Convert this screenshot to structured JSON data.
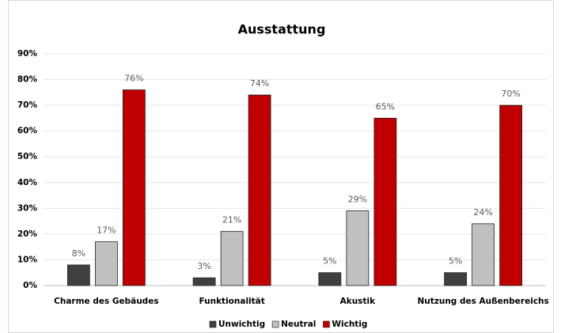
{
  "chart_data": {
    "type": "bar",
    "title": "Ausstattung",
    "categories": [
      "Charme des Gebäudes",
      "Funktionalität",
      "Akustik",
      "Nutzung des Außenbereichs"
    ],
    "series": [
      {
        "name": "Unwichtig",
        "color": "#404040",
        "values": [
          8,
          3,
          5,
          5
        ],
        "value_labels": [
          "8%",
          "3%",
          "5%",
          "5%"
        ]
      },
      {
        "name": "Neutral",
        "color": "#c0c0c0",
        "values": [
          17,
          21,
          29,
          24
        ],
        "value_labels": [
          "17%",
          "21%",
          "29%",
          "24%"
        ]
      },
      {
        "name": "Wichtig",
        "color": "#c00000",
        "values": [
          76,
          74,
          65,
          70
        ],
        "value_labels": [
          "76%",
          "74%",
          "65%",
          "70%"
        ]
      }
    ],
    "ylim": [
      0,
      90
    ],
    "yticks": [
      {
        "value": 0,
        "label": "0%"
      },
      {
        "value": 10,
        "label": "10%"
      },
      {
        "value": 20,
        "label": "20%"
      },
      {
        "value": 30,
        "label": "30%"
      },
      {
        "value": 40,
        "label": "40%"
      },
      {
        "value": 50,
        "label": "50%"
      },
      {
        "value": 60,
        "label": "60%"
      },
      {
        "value": 70,
        "label": "70%"
      },
      {
        "value": 80,
        "label": "80%"
      },
      {
        "value": 90,
        "label": "90%"
      }
    ],
    "grid": true,
    "legend": "bottom"
  }
}
